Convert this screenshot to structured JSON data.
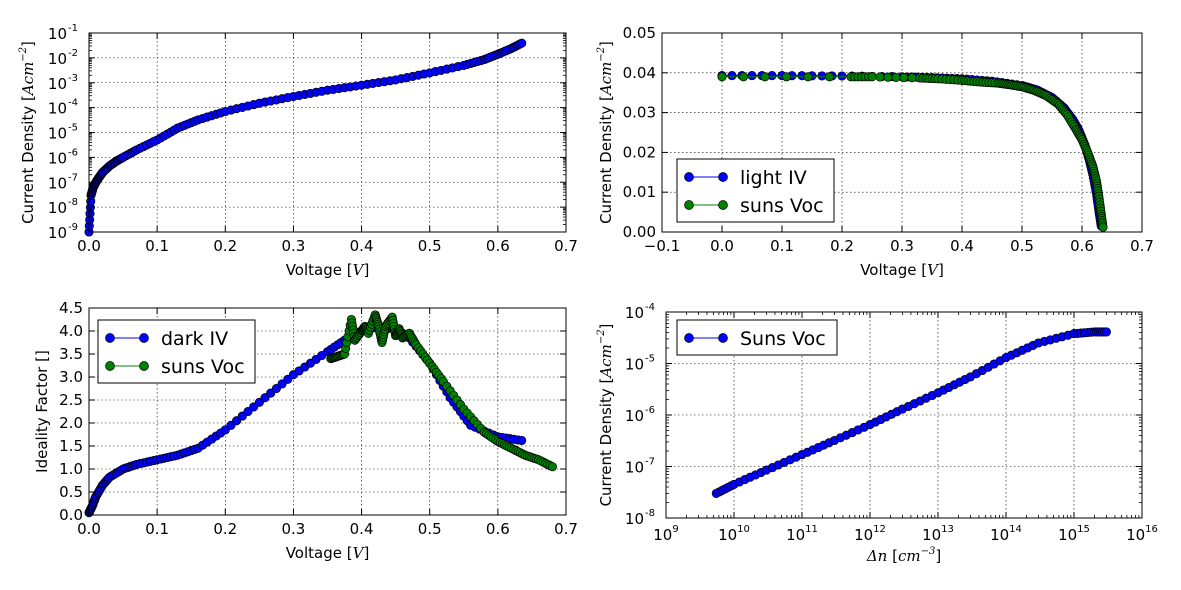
{
  "chart_data": [
    {
      "type": "scatter",
      "id": "p1",
      "title": "",
      "xlabel": "Voltage [V]",
      "xlabel_text": "Voltage",
      "xlabel_unit": "V",
      "ylabel": "Current Density [Acm^-2]",
      "ylabel_text": "Current Density",
      "ylabel_unit": "Acm",
      "ylabel_exp": "−2",
      "xscale": "linear",
      "yscale": "log",
      "xlim": [
        0,
        0.7
      ],
      "ylim": [
        1e-09,
        0.1
      ],
      "x_ticks": [
        0,
        0.1,
        0.2,
        0.3,
        0.4,
        0.5,
        0.6,
        0.7
      ],
      "x_tick_labels": [
        "0.0",
        "0.1",
        "0.2",
        "0.3",
        "0.4",
        "0.5",
        "0.6",
        "0.7"
      ],
      "y_ticks": [
        1e-09,
        1e-08,
        1e-07,
        1e-06,
        1e-05,
        0.0001,
        0.001,
        0.01,
        0.1
      ],
      "y_tick_exps": [
        "-9",
        "-8",
        "-7",
        "-6",
        "-5",
        "-4",
        "-3",
        "-2",
        "-1"
      ],
      "grid": true,
      "legend": null,
      "series": [
        {
          "color": "#0000ff",
          "marker": "circle",
          "x": [
            0,
            0.003,
            0.006,
            0.01,
            0.015,
            0.02,
            0.03,
            0.04,
            0.05,
            0.07,
            0.1,
            0.13,
            0.16,
            0.2,
            0.25,
            0.3,
            0.35,
            0.4,
            0.45,
            0.5,
            0.55,
            0.58,
            0.6,
            0.62,
            0.635
          ],
          "y": [
            1e-09,
            3e-08,
            6e-08,
            1e-07,
            1.6e-07,
            2.5e-07,
            4.5e-07,
            7e-07,
            1e-06,
            2e-06,
            5e-06,
            1.5e-05,
            3.2e-05,
            7e-05,
            0.00015,
            0.00028,
            0.0005,
            0.0008,
            0.0013,
            0.0025,
            0.005,
            0.0085,
            0.014,
            0.024,
            0.039
          ]
        }
      ]
    },
    {
      "type": "line",
      "id": "p2",
      "title": "",
      "xlabel": "Voltage [V]",
      "xlabel_text": "Voltage",
      "xlabel_unit": "V",
      "ylabel": "Current Density [Acm^-2]",
      "ylabel_text": "Current Density",
      "ylabel_unit": "Acm",
      "ylabel_exp": "−2",
      "xscale": "linear",
      "yscale": "linear",
      "xlim": [
        -0.1,
        0.7
      ],
      "ylim": [
        0,
        0.05
      ],
      "x_ticks": [
        -0.1,
        0,
        0.1,
        0.2,
        0.3,
        0.4,
        0.5,
        0.6,
        0.7
      ],
      "x_tick_labels": [
        "−0.1",
        "0.0",
        "0.1",
        "0.2",
        "0.3",
        "0.4",
        "0.5",
        "0.6",
        "0.7"
      ],
      "y_ticks": [
        0,
        0.01,
        0.02,
        0.03,
        0.04,
        0.05
      ],
      "y_tick_labels": [
        "0.00",
        "0.01",
        "0.02",
        "0.03",
        "0.04",
        "0.05"
      ],
      "grid": true,
      "legend": "lower-left",
      "series": [
        {
          "name": "light IV",
          "color": "#0000ff",
          "marker": "circle",
          "x": [
            0,
            0.1,
            0.2,
            0.3,
            0.35,
            0.4,
            0.45,
            0.5,
            0.525,
            0.55,
            0.57,
            0.585,
            0.595,
            0.605,
            0.612,
            0.618,
            0.624,
            0.628,
            0.632
          ],
          "y": [
            0.0393,
            0.0393,
            0.0392,
            0.039,
            0.0388,
            0.0385,
            0.0379,
            0.0368,
            0.0357,
            0.0338,
            0.0312,
            0.0282,
            0.0255,
            0.0218,
            0.0182,
            0.0145,
            0.0098,
            0.0055,
            0.0015
          ]
        },
        {
          "name": "suns Voc",
          "color": "#008000",
          "marker": "circle",
          "x": [
            0,
            0.215,
            0.25,
            0.33,
            0.36,
            0.4,
            0.43,
            0.46,
            0.48,
            0.5,
            0.52,
            0.54,
            0.56,
            0.575,
            0.59,
            0.6,
            0.61,
            0.618,
            0.624,
            0.628,
            0.632,
            0.635
          ],
          "y": [
            0.039,
            0.039,
            0.039,
            0.0387,
            0.0385,
            0.0381,
            0.0377,
            0.0374,
            0.037,
            0.0365,
            0.0356,
            0.0343,
            0.0322,
            0.0295,
            0.0258,
            0.0232,
            0.0198,
            0.0165,
            0.0128,
            0.009,
            0.0045,
            0.0012
          ]
        }
      ]
    },
    {
      "type": "line",
      "id": "p3",
      "title": "",
      "xlabel": "Voltage [V]",
      "xlabel_text": "Voltage",
      "xlabel_unit": "V",
      "ylabel": "Ideality Factor []",
      "ylabel_text": "Ideality Factor []",
      "ylabel_unit": "",
      "ylabel_exp": "",
      "xscale": "linear",
      "yscale": "linear",
      "xlim": [
        0,
        0.7
      ],
      "ylim": [
        0,
        4.5
      ],
      "x_ticks": [
        0,
        0.1,
        0.2,
        0.3,
        0.4,
        0.5,
        0.6,
        0.7
      ],
      "x_tick_labels": [
        "0.0",
        "0.1",
        "0.2",
        "0.3",
        "0.4",
        "0.5",
        "0.6",
        "0.7"
      ],
      "y_ticks": [
        0,
        0.5,
        1,
        1.5,
        2,
        2.5,
        3,
        3.5,
        4,
        4.5
      ],
      "y_tick_labels": [
        "0.0",
        "0.5",
        "1.0",
        "1.5",
        "2.0",
        "2.5",
        "3.0",
        "3.5",
        "4.0",
        "4.5"
      ],
      "grid": true,
      "legend": "upper-left",
      "series": [
        {
          "name": "dark IV",
          "color": "#0000ff",
          "marker": "circle",
          "x": [
            0,
            0.005,
            0.01,
            0.02,
            0.03,
            0.05,
            0.07,
            0.1,
            0.13,
            0.16,
            0.2,
            0.25,
            0.3,
            0.35,
            0.38,
            0.4,
            0.42,
            0.45,
            0.47,
            0.5,
            0.53,
            0.56,
            0.6,
            0.635
          ],
          "y": [
            0.05,
            0.2,
            0.4,
            0.65,
            0.82,
            1.0,
            1.1,
            1.2,
            1.3,
            1.45,
            1.85,
            2.45,
            3.05,
            3.55,
            3.85,
            4.0,
            4.08,
            4.05,
            3.85,
            3.3,
            2.55,
            1.95,
            1.7,
            1.62
          ]
        },
        {
          "name": "suns Voc",
          "color": "#008000",
          "marker": "circle",
          "x": [
            0.355,
            0.365,
            0.375,
            0.385,
            0.39,
            0.4,
            0.405,
            0.41,
            0.42,
            0.425,
            0.43,
            0.435,
            0.445,
            0.45,
            0.455,
            0.46,
            0.47,
            0.48,
            0.5,
            0.52,
            0.55,
            0.58,
            0.6,
            0.62,
            0.64,
            0.66,
            0.68
          ],
          "y": [
            3.4,
            3.45,
            3.5,
            4.25,
            3.8,
            4.0,
            4.1,
            3.95,
            4.35,
            4.1,
            3.75,
            4.1,
            4.3,
            3.9,
            4.05,
            3.85,
            3.95,
            3.7,
            3.3,
            2.9,
            2.3,
            1.8,
            1.6,
            1.45,
            1.3,
            1.2,
            1.05
          ]
        }
      ]
    },
    {
      "type": "scatter",
      "id": "p4",
      "title": "",
      "xlabel": "Δn [cm^-3]",
      "xlabel_text": "Δn",
      "xlabel_unit": "cm",
      "xlabel_exp": "−3",
      "ylabel": "Current Density [Acm^-2]",
      "ylabel_text": "Current Density",
      "ylabel_unit": "Acm",
      "ylabel_exp": "−2",
      "xscale": "log",
      "yscale": "log",
      "xlim": [
        1000000000.0,
        1e+16
      ],
      "ylim": [
        1e-08,
        0.0001
      ],
      "x_ticks": [
        1000000000.0,
        10000000000.0,
        100000000000.0,
        1000000000000.0,
        10000000000000.0,
        100000000000000.0,
        1000000000000000.0,
        1e+16
      ],
      "x_tick_exps": [
        "9",
        "10",
        "11",
        "12",
        "13",
        "14",
        "15",
        "16"
      ],
      "y_ticks": [
        1e-08,
        1e-07,
        1e-06,
        1e-05,
        0.0001
      ],
      "y_tick_exps": [
        "-8",
        "-7",
        "-6",
        "-5",
        "-4"
      ],
      "grid": true,
      "legend": "upper-left",
      "series": [
        {
          "name": "Suns Voc",
          "color": "#0000ff",
          "marker": "circle",
          "x": [
            5500000000.0,
            10000000000.0,
            30000000000.0,
            100000000000.0,
            300000000000.0,
            1000000000000.0,
            3000000000000.0,
            10000000000000.0,
            30000000000000.0,
            100000000000000.0,
            300000000000000.0,
            1000000000000000.0,
            2000000000000000.0,
            3000000000000000.0
          ],
          "y": [
            3e-08,
            4.5e-08,
            8.5e-08,
            1.7e-07,
            3.2e-07,
            6.5e-07,
            1.3e-06,
            2.7e-06,
            5.5e-06,
            1.3e-05,
            2.5e-05,
            3.8e-05,
            4.1e-05,
            4.1e-05
          ]
        }
      ]
    }
  ]
}
